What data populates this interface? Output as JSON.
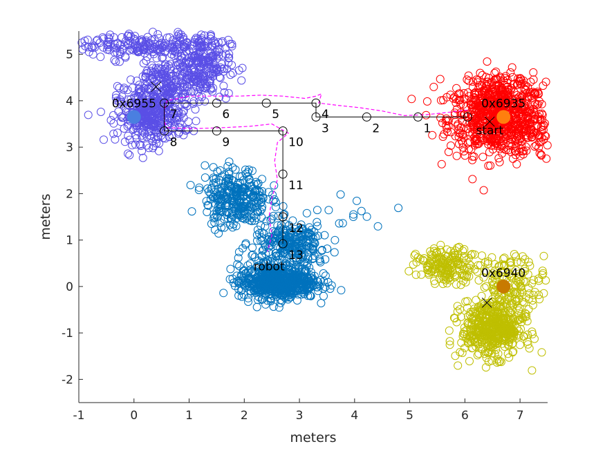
{
  "chart_data": {
    "type": "scatter",
    "xlabel": "meters",
    "ylabel": "meters",
    "xlim": [
      -1,
      7.5
    ],
    "ylim": [
      -2.5,
      5.5
    ],
    "xticks": [
      "-1",
      "0",
      "1",
      "2",
      "3",
      "4",
      "5",
      "6",
      "7"
    ],
    "yticks": [
      "-2",
      "-1",
      "0",
      "1",
      "2",
      "3",
      "4",
      "5"
    ],
    "grid": false,
    "clusters": [
      {
        "color": "#ff0000",
        "blobs": [
          {
            "cx": 6.6,
            "cy": 3.6,
            "sx": 0.45,
            "sy": 0.38,
            "n": 650
          },
          {
            "cx": 6.6,
            "cy": 4.25,
            "sx": 0.4,
            "sy": 0.2,
            "n": 120
          },
          {
            "cx": 7.1,
            "cy": 3.3,
            "sx": 0.35,
            "sy": 0.3,
            "n": 80
          }
        ]
      },
      {
        "color": "#5a4fe6",
        "blobs": [
          {
            "cx": 0.3,
            "cy": 3.65,
            "sx": 0.3,
            "sy": 0.28,
            "n": 350
          },
          {
            "cx": 0.6,
            "cy": 4.3,
            "sx": 0.35,
            "sy": 0.3,
            "n": 200
          },
          {
            "cx": 1.25,
            "cy": 4.8,
            "sx": 0.25,
            "sy": 0.35,
            "n": 200
          },
          {
            "cx": -0.1,
            "cy": 5.2,
            "sx": 0.45,
            "sy": 0.15,
            "n": 130
          },
          {
            "cx": 0.9,
            "cy": 5.1,
            "sx": 0.3,
            "sy": 0.25,
            "n": 80
          }
        ]
      },
      {
        "color": "#0072bd",
        "blobs": [
          {
            "cx": 2.6,
            "cy": 0.1,
            "sx": 0.35,
            "sy": 0.18,
            "n": 650
          },
          {
            "cx": 1.85,
            "cy": 1.9,
            "sx": 0.28,
            "sy": 0.32,
            "n": 300
          },
          {
            "cx": 2.85,
            "cy": 0.9,
            "sx": 0.35,
            "sy": 0.25,
            "n": 260
          },
          {
            "cx": 3.9,
            "cy": 1.6,
            "sx": 0.3,
            "sy": 0.15,
            "n": 12
          }
        ]
      },
      {
        "color": "#bfbf00",
        "blobs": [
          {
            "cx": 6.5,
            "cy": -0.9,
            "sx": 0.28,
            "sy": 0.3,
            "n": 500
          },
          {
            "cx": 5.7,
            "cy": 0.45,
            "sx": 0.28,
            "sy": 0.18,
            "n": 180
          },
          {
            "cx": 6.9,
            "cy": 0.1,
            "sx": 0.3,
            "sy": 0.3,
            "n": 130
          }
        ]
      }
    ],
    "anchors": [
      {
        "label": "0x6935",
        "x": 6.7,
        "y": 3.65,
        "color": "#ff7f0e"
      },
      {
        "label": "0x6955",
        "x": 0.0,
        "y": 3.65,
        "color": "#4a7fe0"
      },
      {
        "label": "0x6940",
        "x": 6.7,
        "y": 0.0,
        "color": "#c87a00"
      }
    ],
    "cross_marks": [
      {
        "x": 6.45,
        "y": 3.55
      },
      {
        "x": 0.4,
        "y": 4.3
      },
      {
        "x": 6.4,
        "y": -0.35
      }
    ],
    "waypoints": [
      {
        "label": "1",
        "x": 5.15,
        "y": 3.65
      },
      {
        "label": "2",
        "x": 4.22,
        "y": 3.65
      },
      {
        "label": "3",
        "x": 3.3,
        "y": 3.65
      },
      {
        "label": "4",
        "x": 3.3,
        "y": 3.95
      },
      {
        "label": "5",
        "x": 2.4,
        "y": 3.95
      },
      {
        "label": "6",
        "x": 1.5,
        "y": 3.95
      },
      {
        "label": "7",
        "x": 0.55,
        "y": 3.95
      },
      {
        "label": "8",
        "x": 0.55,
        "y": 3.35
      },
      {
        "label": "9",
        "x": 1.5,
        "y": 3.35
      },
      {
        "label": "10",
        "x": 2.7,
        "y": 3.35
      },
      {
        "label": "11",
        "x": 2.7,
        "y": 2.42
      },
      {
        "label": "12",
        "x": 2.7,
        "y": 1.5
      },
      {
        "label": "13",
        "x": 2.7,
        "y": 0.92
      }
    ],
    "planned_path_start": {
      "x": 6.05,
      "y": 3.65
    },
    "labels": {
      "start": "start",
      "robot": "robot"
    },
    "trajectory": [
      [
        6.05,
        3.8
      ],
      [
        5.7,
        3.75
      ],
      [
        5.3,
        3.7
      ],
      [
        4.9,
        3.68
      ],
      [
        4.5,
        3.78
      ],
      [
        4.1,
        3.85
      ],
      [
        3.7,
        3.9
      ],
      [
        3.35,
        3.95
      ],
      [
        3.4,
        4.15
      ],
      [
        3.3,
        4.1
      ],
      [
        3.1,
        4.05
      ],
      [
        2.7,
        4.1
      ],
      [
        2.3,
        4.12
      ],
      [
        1.9,
        4.1
      ],
      [
        1.5,
        4.1
      ],
      [
        1.0,
        4.1
      ],
      [
        0.6,
        4.0
      ],
      [
        0.55,
        3.8
      ],
      [
        0.55,
        3.55
      ],
      [
        0.6,
        3.42
      ],
      [
        1.1,
        3.4
      ],
      [
        1.6,
        3.42
      ],
      [
        2.1,
        3.45
      ],
      [
        2.5,
        3.5
      ],
      [
        2.8,
        3.3
      ],
      [
        2.6,
        3.1
      ],
      [
        2.55,
        2.7
      ],
      [
        2.6,
        2.3
      ],
      [
        2.5,
        1.9
      ],
      [
        2.45,
        1.5
      ],
      [
        2.5,
        1.1
      ],
      [
        2.42,
        0.75
      ]
    ]
  }
}
